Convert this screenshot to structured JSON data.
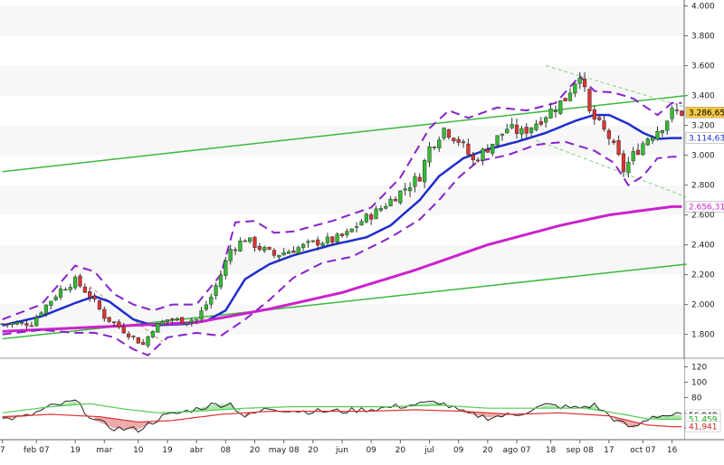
{
  "chart_data": [
    {
      "type": "candlestick",
      "title": "",
      "y_axis": {
        "ticks": [
          "4.000",
          "3.800",
          "3.600",
          "3.400",
          "3.200",
          "3.000",
          "2.800",
          "2.600",
          "2.400",
          "2.200",
          "2.000",
          "1.800"
        ],
        "tick_values": [
          4000,
          3800,
          3600,
          3400,
          3200,
          3000,
          2800,
          2600,
          2400,
          2200,
          2000,
          1800
        ],
        "range": [
          1640,
          4040
        ]
      },
      "x_axis": {
        "labels": [
          "7",
          "feb 07",
          "19",
          "mar",
          "10",
          "19",
          "abr",
          "08",
          "20",
          "may 08",
          "20",
          "jun",
          "09",
          "20",
          "jul",
          "09",
          "20",
          "ago 07",
          "18",
          "sep 08",
          "17",
          "oct 07",
          "16"
        ],
        "label_index": [
          0,
          7,
          15,
          21,
          28,
          34,
          40,
          46,
          52,
          58,
          64,
          70,
          76,
          82,
          88,
          94,
          100,
          106,
          113,
          119,
          125,
          132,
          138
        ],
        "n_bars": 141
      },
      "price_flags": [
        {
          "value": "3.286,65",
          "y": 3286.65,
          "bg": "#f5c842",
          "fg": "#000000"
        },
        {
          "value": "3.114,63",
          "y": 3114.63,
          "bg": "#ffffff",
          "fg": "#1e2ecc"
        },
        {
          "value": "2.656,31",
          "y": 2656.31,
          "bg": "#ffffff",
          "fg": "#cc22cc"
        }
      ],
      "ohlc_anchors": [
        [
          0,
          1870
        ],
        [
          6,
          1875
        ],
        [
          8,
          1960
        ],
        [
          12,
          2100
        ],
        [
          15,
          2160
        ],
        [
          18,
          2060
        ],
        [
          21,
          1920
        ],
        [
          24,
          1850
        ],
        [
          27,
          1780
        ],
        [
          29,
          1730
        ],
        [
          31,
          1840
        ],
        [
          34,
          1900
        ],
        [
          37,
          1895
        ],
        [
          40,
          1900
        ],
        [
          43,
          2050
        ],
        [
          45,
          2200
        ],
        [
          47,
          2370
        ],
        [
          50,
          2440
        ],
        [
          53,
          2380
        ],
        [
          56,
          2330
        ],
        [
          59,
          2360
        ],
        [
          62,
          2390
        ],
        [
          65,
          2420
        ],
        [
          68,
          2430
        ],
        [
          71,
          2470
        ],
        [
          74,
          2560
        ],
        [
          77,
          2620
        ],
        [
          80,
          2700
        ],
        [
          83,
          2780
        ],
        [
          86,
          2860
        ],
        [
          88,
          3050
        ],
        [
          91,
          3180
        ],
        [
          94,
          3100
        ],
        [
          97,
          2960
        ],
        [
          100,
          3050
        ],
        [
          104,
          3180
        ],
        [
          107,
          3150
        ],
        [
          110,
          3220
        ],
        [
          113,
          3300
        ],
        [
          116,
          3380
        ],
        [
          118,
          3500
        ],
        [
          119,
          3560
        ],
        [
          121,
          3280
        ],
        [
          123,
          3200
        ],
        [
          125,
          3120
        ],
        [
          127,
          2980
        ],
        [
          128,
          2900
        ],
        [
          130,
          3000
        ],
        [
          133,
          3120
        ],
        [
          136,
          3200
        ],
        [
          138,
          3287
        ]
      ],
      "indicators": [
        {
          "name": "",
          "color": "#1e2ecc",
          "type": "moving-average",
          "anchors": [
            [
              0,
              1860
            ],
            [
              8,
              1920
            ],
            [
              15,
              2010
            ],
            [
              19,
              2055
            ],
            [
              22,
              2020
            ],
            [
              27,
              1900
            ],
            [
              31,
              1860
            ],
            [
              38,
              1870
            ],
            [
              42,
              1890
            ],
            [
              46,
              1960
            ],
            [
              50,
              2170
            ],
            [
              55,
              2270
            ],
            [
              60,
              2330
            ],
            [
              68,
              2400
            ],
            [
              75,
              2450
            ],
            [
              80,
              2530
            ],
            [
              86,
              2700
            ],
            [
              90,
              2860
            ],
            [
              95,
              2980
            ],
            [
              100,
              3040
            ],
            [
              106,
              3090
            ],
            [
              112,
              3150
            ],
            [
              118,
              3230
            ],
            [
              122,
              3270
            ],
            [
              125,
              3270
            ],
            [
              129,
              3210
            ],
            [
              132,
              3150
            ],
            [
              135,
              3110
            ],
            [
              138,
              3115
            ]
          ],
          "last": 3114.63
        },
        {
          "name": "",
          "color": "#cc22cc",
          "type": "moving-average",
          "anchors": [
            [
              0,
              1820
            ],
            [
              20,
              1850
            ],
            [
              40,
              1880
            ],
            [
              55,
              1970
            ],
            [
              70,
              2080
            ],
            [
              85,
              2230
            ],
            [
              100,
              2400
            ],
            [
              115,
              2530
            ],
            [
              125,
              2600
            ],
            [
              138,
              2656
            ]
          ],
          "last": 2656.31
        },
        {
          "name": "",
          "color": "#8822cc",
          "type": "band-upper",
          "anchors": [
            [
              0,
              1900
            ],
            [
              8,
              2000
            ],
            [
              15,
              2260
            ],
            [
              19,
              2220
            ],
            [
              23,
              2070
            ],
            [
              27,
              2000
            ],
            [
              31,
              1960
            ],
            [
              35,
              2000
            ],
            [
              40,
              2000
            ],
            [
              45,
              2200
            ],
            [
              48,
              2550
            ],
            [
              52,
              2560
            ],
            [
              56,
              2480
            ],
            [
              60,
              2490
            ],
            [
              68,
              2560
            ],
            [
              76,
              2650
            ],
            [
              82,
              2850
            ],
            [
              88,
              3180
            ],
            [
              92,
              3300
            ],
            [
              96,
              3250
            ],
            [
              102,
              3320
            ],
            [
              108,
              3300
            ],
            [
              114,
              3350
            ],
            [
              119,
              3530
            ],
            [
              122,
              3430
            ],
            [
              126,
              3420
            ],
            [
              130,
              3380
            ],
            [
              135,
              3270
            ],
            [
              138,
              3350
            ]
          ]
        },
        {
          "name": "",
          "color": "#8822cc",
          "type": "band-lower",
          "anchors": [
            [
              0,
              1800
            ],
            [
              8,
              1830
            ],
            [
              15,
              1810
            ],
            [
              19,
              1810
            ],
            [
              23,
              1780
            ],
            [
              27,
              1700
            ],
            [
              30,
              1660
            ],
            [
              34,
              1780
            ],
            [
              40,
              1810
            ],
            [
              45,
              1790
            ],
            [
              50,
              1900
            ],
            [
              55,
              2030
            ],
            [
              60,
              2180
            ],
            [
              66,
              2280
            ],
            [
              72,
              2320
            ],
            [
              80,
              2450
            ],
            [
              86,
              2570
            ],
            [
              90,
              2700
            ],
            [
              94,
              2850
            ],
            [
              98,
              2960
            ],
            [
              104,
              3000
            ],
            [
              110,
              3070
            ],
            [
              116,
              3090
            ],
            [
              122,
              3030
            ],
            [
              126,
              2950
            ],
            [
              129,
              2800
            ],
            [
              132,
              2860
            ],
            [
              135,
              2980
            ],
            [
              138,
              2990
            ]
          ]
        }
      ],
      "trendlines": [
        {
          "color": "#3cb83c",
          "style": "solid",
          "from": [
            0,
            2890
          ],
          "to": [
            141,
            3400
          ]
        },
        {
          "color": "#3cb83c",
          "style": "solid",
          "from": [
            0,
            1770
          ],
          "to": [
            141,
            2270
          ]
        },
        {
          "color": "#88cc88",
          "style": "dashed",
          "from": [
            110,
            3100
          ],
          "to": [
            141,
            2720
          ]
        },
        {
          "color": "#88cc88",
          "style": "dashed",
          "from": [
            112,
            3600
          ],
          "to": [
            141,
            3320
          ]
        },
        {
          "color": "#cc8866",
          "style": "dashed",
          "from": [
            18,
            2120
          ],
          "to": [
            33,
            1750
          ]
        }
      ]
    },
    {
      "type": "oscillator",
      "y_axis": {
        "ticks": [
          "120",
          "100",
          "80",
          "60",
          "40"
        ],
        "tick_values": [
          120,
          100,
          80,
          60,
          40
        ],
        "range": [
          25,
          130
        ]
      },
      "price_flags": [
        {
          "value": "56,948",
          "y": 56.948,
          "bg": "#ffffff",
          "fg": "#000000"
        },
        {
          "value": "51,459",
          "y": 51.459,
          "bg": "#ffffff",
          "fg": "#22aa22"
        },
        {
          "value": "41,941",
          "y": 41.941,
          "bg": "#ffffff",
          "fg": "#cc2222"
        }
      ],
      "series": [
        {
          "name": "",
          "color": "#222222",
          "anchors": [
            [
              0,
              52
            ],
            [
              5,
              55
            ],
            [
              10,
              68
            ],
            [
              15,
              75
            ],
            [
              19,
              50
            ],
            [
              23,
              40
            ],
            [
              28,
              38
            ],
            [
              33,
              55
            ],
            [
              38,
              62
            ],
            [
              43,
              70
            ],
            [
              47,
              72
            ],
            [
              50,
              55
            ],
            [
              55,
              66
            ],
            [
              62,
              62
            ],
            [
              70,
              62
            ],
            [
              78,
              66
            ],
            [
              84,
              70
            ],
            [
              90,
              74
            ],
            [
              95,
              60
            ],
            [
              100,
              54
            ],
            [
              106,
              58
            ],
            [
              112,
              70
            ],
            [
              118,
              66
            ],
            [
              122,
              70
            ],
            [
              127,
              48
            ],
            [
              130,
              40
            ],
            [
              134,
              56
            ],
            [
              138,
              57
            ]
          ],
          "last": 56.948
        },
        {
          "name": "",
          "color": "#55cc55",
          "anchors": [
            [
              0,
              60
            ],
            [
              10,
              68
            ],
            [
              18,
              72
            ],
            [
              25,
              65
            ],
            [
              32,
              60
            ],
            [
              40,
              62
            ],
            [
              50,
              66
            ],
            [
              60,
              68
            ],
            [
              70,
              68
            ],
            [
              80,
              68
            ],
            [
              90,
              70
            ],
            [
              100,
              66
            ],
            [
              110,
              66
            ],
            [
              120,
              66
            ],
            [
              128,
              58
            ],
            [
              133,
              52
            ],
            [
              138,
              51.5
            ]
          ],
          "last": 51.459
        },
        {
          "name": "",
          "color": "#dd3333",
          "anchors": [
            [
              0,
              55
            ],
            [
              10,
              58
            ],
            [
              20,
              55
            ],
            [
              28,
              48
            ],
            [
              35,
              50
            ],
            [
              45,
              58
            ],
            [
              55,
              62
            ],
            [
              65,
              62
            ],
            [
              75,
              62
            ],
            [
              85,
              64
            ],
            [
              95,
              62
            ],
            [
              105,
              58
            ],
            [
              115,
              60
            ],
            [
              125,
              56
            ],
            [
              133,
              44
            ],
            [
              138,
              42
            ]
          ],
          "last": 41.941
        }
      ]
    }
  ]
}
